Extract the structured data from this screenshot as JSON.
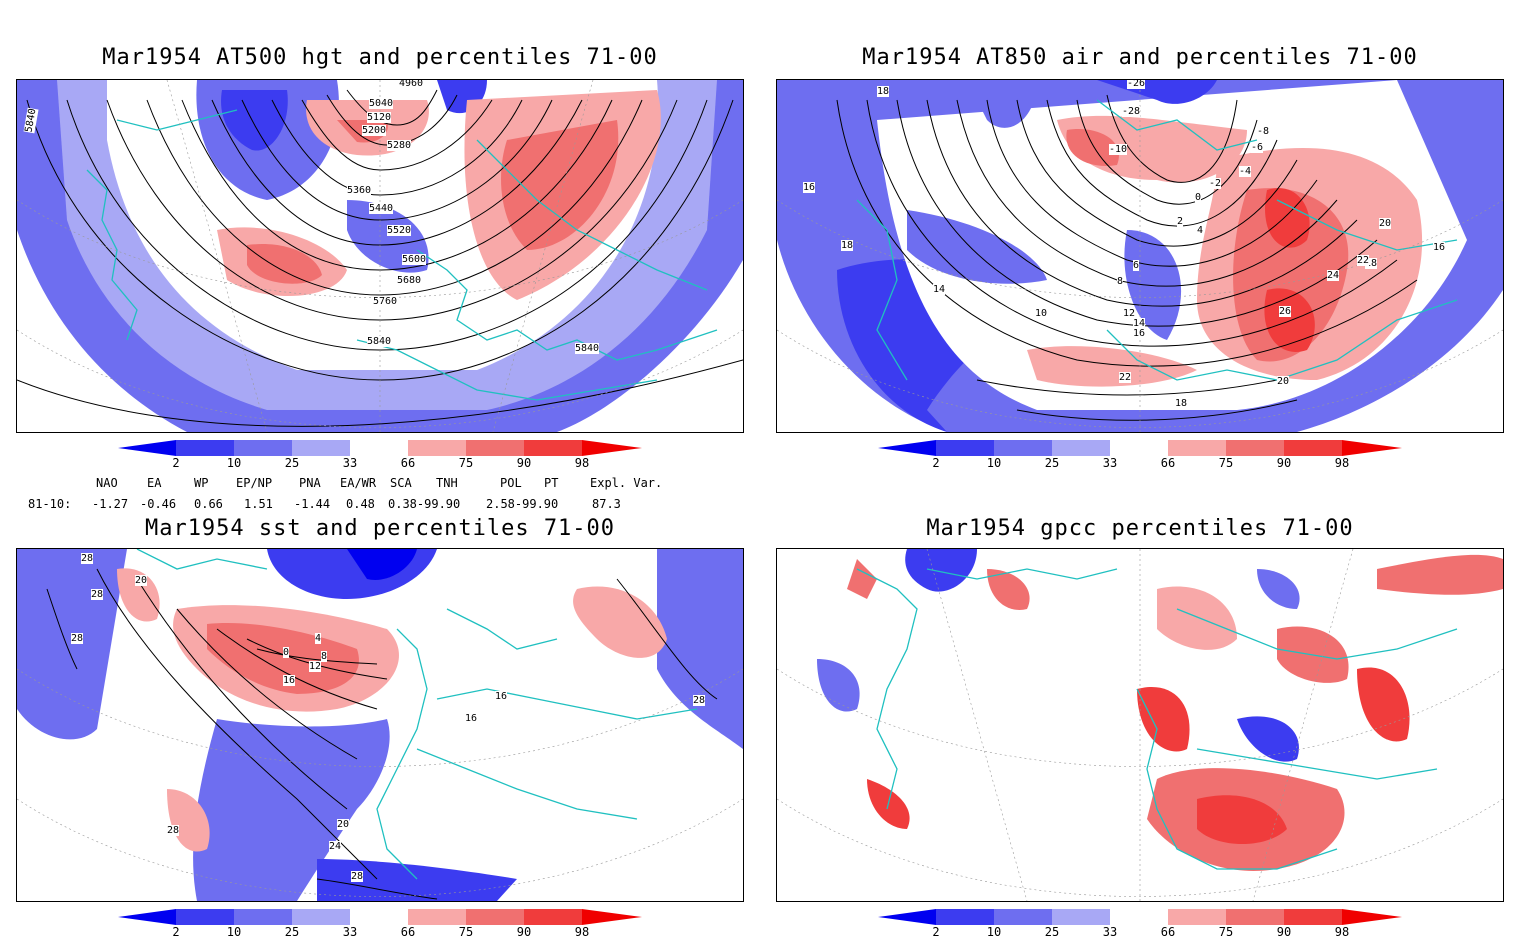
{
  "panels": {
    "tl": {
      "title": "Mar1954 AT500 hgt and percentiles 71-00",
      "contour_labels": [
        "4960",
        "5040",
        "5120",
        "5200",
        "5280",
        "5360",
        "5440",
        "5520",
        "5600",
        "5680",
        "5760",
        "5840",
        "5840",
        "5840"
      ]
    },
    "tr": {
      "title": "Mar1954 AT850 air and percentiles 71-00",
      "contour_labels": [
        "-26",
        "-28",
        "-10",
        "-8",
        "-6",
        "-4",
        "-2",
        "0",
        "2",
        "4",
        "6",
        "8",
        "10",
        "12",
        "14",
        "16",
        "18",
        "18",
        "20",
        "22",
        "24",
        "26",
        "22",
        "20",
        "18",
        "16",
        "14",
        "18",
        "16"
      ]
    },
    "bl": {
      "title": "Mar1954 sst and percentiles 71-00",
      "contour_labels": [
        "28",
        "20",
        "28",
        "28",
        "0",
        "4",
        "8",
        "12",
        "16",
        "16",
        "16",
        "20",
        "24",
        "28",
        "28",
        "28"
      ]
    },
    "br": {
      "title": "Mar1954 gpcc percentiles 71-00",
      "contour_labels": []
    }
  },
  "colorbar": {
    "ticks": [
      "2",
      "10",
      "25",
      "33",
      "66",
      "75",
      "90",
      "98"
    ],
    "colors": {
      "blue_extreme": "#0000f0",
      "blue_dark": "#3c3cf0",
      "blue_mid": "#6e6ef0",
      "blue_light": "#a8a8f5",
      "red_light": "#f8a8a8",
      "red_mid": "#f07070",
      "red_dark": "#f03c3c",
      "red_extreme": "#f00000"
    }
  },
  "indices": {
    "headers": [
      "NAO",
      "EA",
      "WP",
      "EP/NP",
      "PNA",
      "EA/WR",
      "SCA",
      "TNH",
      "POL",
      "PT",
      "Expl. Var."
    ],
    "row_label": "81-10:",
    "values": [
      "-1.27",
      "-0.46",
      "0.66",
      "1.51",
      "-1.44",
      "0.48",
      "0.38-99.90",
      "2.58-99.90",
      "87.3"
    ]
  },
  "colors": {
    "coast": "#20c0c0",
    "frame": "#000000"
  }
}
